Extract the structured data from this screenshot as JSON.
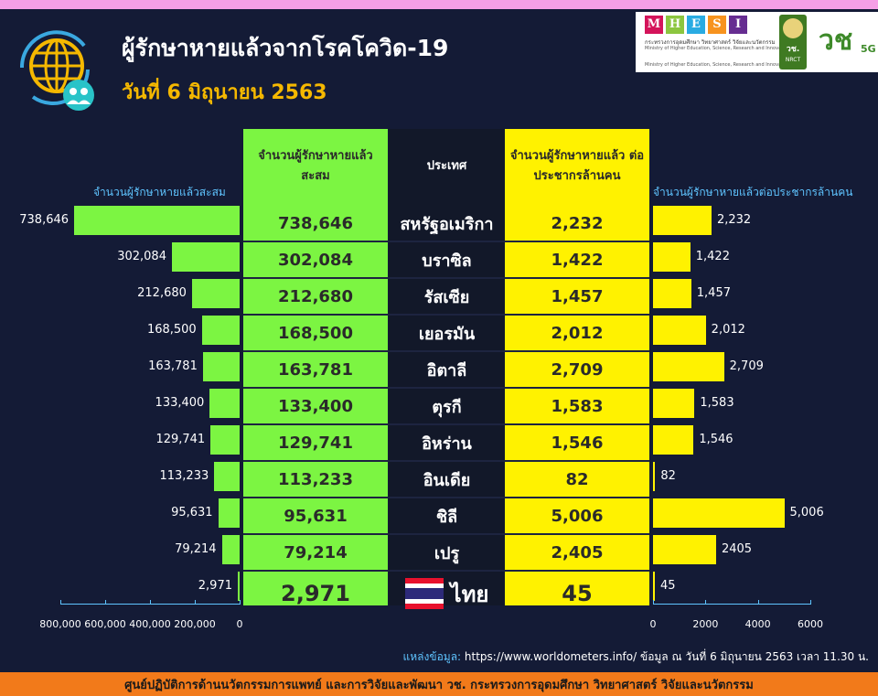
{
  "header": {
    "title": "ผู้รักษาหายแล้วจากโรคโควิด-19",
    "subtitle": "วันที่ 6 มิถุนายน 2563"
  },
  "logos": {
    "mhesi_letters": [
      "M",
      "H",
      "E",
      "S",
      "I"
    ],
    "mhesi_colors": [
      "#d4145a",
      "#8cc63f",
      "#29abe2",
      "#f7931e",
      "#662d91"
    ],
    "ministry_th": "กระทรวงการอุดมศึกษา วิทยาศาสตร์ วิจัยและนวัตกรรม",
    "ministry_en": "Ministry of Higher Education, Science, Research and Innovation",
    "ministry_en2": "Ministry of Higher Education, Science, Research and Innovation",
    "nrct_mark": "วช.",
    "nrct_text": "NRCT",
    "vc_mark": "วช",
    "vc_5g": "5G"
  },
  "table": {
    "col1_header": "จำนวนผู้รักษาหายแล้ว สะสม",
    "col2_header": "ประเทศ",
    "col3_header": "จำนวนผู้รักษาหายแล้ว ต่อประชากรล้านคน"
  },
  "chart_data": {
    "type": "bar",
    "left_axis_title": "จำนวนผู้รักษาหายแล้วสะสม",
    "right_axis_title": "จำนวนผู้รักษาหายแล้วต่อประชากรล้านคน",
    "left_xlim": [
      0,
      800000
    ],
    "right_xlim": [
      0,
      6000
    ],
    "left_ticks": [
      "800,000",
      "600,000",
      "400,000",
      "200,000",
      "0"
    ],
    "left_tick_values": [
      800000,
      600000,
      400000,
      200000,
      0
    ],
    "right_ticks": [
      "0",
      "2000",
      "4000",
      "6000"
    ],
    "right_tick_values": [
      0,
      2000,
      4000,
      6000
    ],
    "categories": [
      "สหรัฐอเมริกา",
      "บราซิล",
      "รัสเซีย",
      "เยอรมัน",
      "อิตาลี",
      "ตุรกี",
      "อิหร่าน",
      "อินเดีย",
      "ชิลี",
      "เปรู",
      "ไทย"
    ],
    "series": [
      {
        "values": [
          738646,
          302084,
          212680,
          168500,
          163781,
          133400,
          129741,
          113233,
          95631,
          79214,
          2971
        ],
        "labels": [
          "738,646",
          "302,084",
          "212,680",
          "168,500",
          "163,781",
          "133,400",
          "129,741",
          "113,233",
          "95,631",
          "79,214",
          "2,971"
        ]
      },
      {
        "values": [
          2232,
          1422,
          1457,
          2012,
          2709,
          1583,
          1546,
          82,
          5006,
          2405,
          45
        ],
        "labels": [
          "2,232",
          "1,422",
          "1,457",
          "2,012",
          "2,709",
          "1,583",
          "1,546",
          "82",
          "5,006",
          "2405",
          "45"
        ]
      }
    ],
    "table_col3_labels": [
      "2,232",
      "1,422",
      "1,457",
      "2,012",
      "2,709",
      "1,583",
      "1,546",
      "82",
      "5,006",
      "2,405",
      "45"
    ]
  },
  "footer": {
    "source_label": "แหล่งข้อมูล:",
    "source_text": " https://www.worldometers.info/ ข้อมูล ณ วันที่ 6 มิถุนายน 2563 เวลา 11.30 น.",
    "org": "ศูนย์ปฏิบัติการด้านนวัตกรรมการแพทย์ และการวิจัยและพัฒนา วช.  กระทรวงการอุดมศึกษา วิทยาศาสตร์ วิจัยและนวัตกรรม"
  }
}
